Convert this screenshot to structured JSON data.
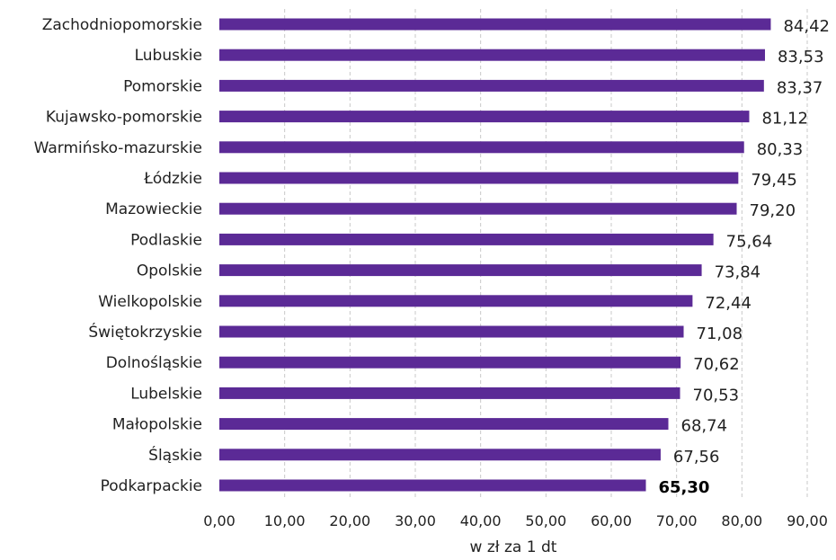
{
  "chart_data": {
    "type": "bar",
    "orientation": "horizontal",
    "categories": [
      "Zachodniopomorskie",
      "Lubuskie",
      "Pomorskie",
      "Kujawsko-pomorskie",
      "Warmińsko-mazurskie",
      "Łódzkie",
      "Mazowieckie",
      "Podlaskie",
      "Opolskie",
      "Wielkopolskie",
      "Świętokrzyskie",
      "Dolnośląskie",
      "Lubelskie",
      "Małopolskie",
      "Śląskie",
      "Podkarpackie"
    ],
    "values": [
      84.42,
      83.53,
      83.37,
      81.12,
      80.33,
      79.45,
      79.2,
      75.64,
      73.84,
      72.44,
      71.08,
      70.62,
      70.53,
      68.74,
      67.56,
      65.3
    ],
    "value_labels": [
      "84,42",
      "83,53",
      "83,37",
      "81,12",
      "80,33",
      "79,45",
      "79,20",
      "75,64",
      "73,84",
      "72,44",
      "71,08",
      "70,62",
      "70,53",
      "68,74",
      "67,56",
      "65,30"
    ],
    "highlighted_category": "Podkarpackie",
    "xlabel": "w zł za 1 dt",
    "ylabel": "",
    "title": "",
    "xlim": [
      0,
      90
    ],
    "x_ticks": [
      0,
      10,
      20,
      30,
      40,
      50,
      60,
      70,
      80,
      90
    ],
    "x_tick_labels": [
      "0,00",
      "10,00",
      "20,00",
      "30,00",
      "40,00",
      "50,00",
      "60,00",
      "70,00",
      "80,00",
      "90,00"
    ],
    "grid": true,
    "legend": "none",
    "colors": {
      "bar": "#5b2a96",
      "grid": "#c8c8c8",
      "text": "#222222"
    }
  }
}
